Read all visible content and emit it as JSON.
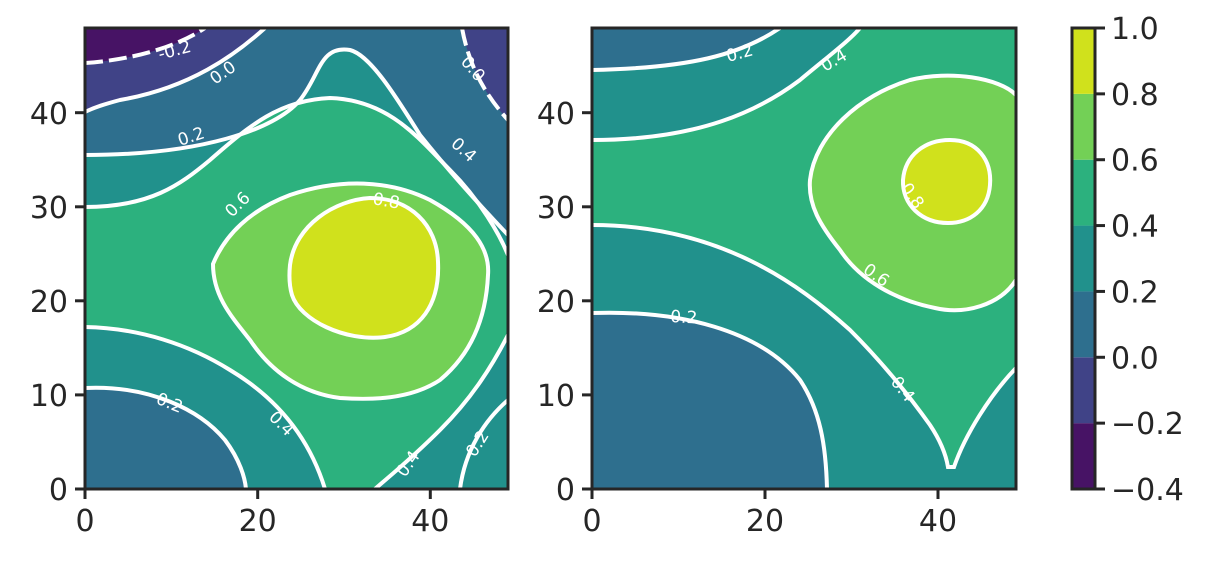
{
  "chart_data": [
    {
      "type": "contour",
      "title": "",
      "xlabel": "",
      "ylabel": "",
      "xlim": [
        0,
        49
      ],
      "ylim": [
        0,
        49
      ],
      "xticks": [
        "0",
        "20",
        "40"
      ],
      "yticks": [
        "0",
        "10",
        "20",
        "30",
        "40"
      ],
      "grid": false,
      "colormap": "viridis",
      "extrema": [
        {
          "kind": "max",
          "x": 32.5,
          "y": 23.5,
          "level_band": "0.8–1.0"
        },
        {
          "kind": "min",
          "x": 0,
          "y": 49,
          "level_band": "-0.4–-0.2"
        },
        {
          "kind": "min",
          "x": 49,
          "y": 49,
          "level_band": "-0.2–0.0"
        }
      ],
      "contour_labels": [
        "-0.2",
        "0.0",
        "0.0",
        "0.2",
        "0.4",
        "0.6",
        "0.8",
        "0.2",
        "0.4",
        "0.4",
        "0.2"
      ]
    },
    {
      "type": "contour",
      "title": "",
      "xlabel": "",
      "ylabel": "",
      "xlim": [
        0,
        49
      ],
      "ylim": [
        0,
        49
      ],
      "xticks": [
        "0",
        "20",
        "40"
      ],
      "yticks": [
        "0",
        "10",
        "20",
        "30",
        "40"
      ],
      "grid": false,
      "colormap": "viridis",
      "extrema": [
        {
          "kind": "max",
          "x": 41.5,
          "y": 32.5,
          "level_band": "0.8–1.0"
        },
        {
          "kind": "min",
          "x": 0,
          "y": 0,
          "level_band": "0.0–0.2"
        }
      ],
      "contour_labels": [
        "0.2",
        "0.4",
        "0.8",
        "0.6",
        "0.2",
        "0.4"
      ]
    },
    {
      "type": "colorbar",
      "levels": [
        -0.4,
        -0.2,
        0.0,
        0.2,
        0.4,
        0.6,
        0.8,
        1.0
      ],
      "tick_labels": [
        "1.0",
        "0.8",
        "0.6",
        "0.4",
        "0.2",
        "0.0",
        "−0.2",
        "−0.4"
      ],
      "band_colors": [
        "#471365",
        "#404387",
        "#2e6f8e",
        "#21918c",
        "#2cb17e",
        "#73d056",
        "#d0e11c"
      ]
    }
  ],
  "colors": {
    "axes_edge": "#262626",
    "contour_line": "#ffffff",
    "text": "#262626"
  }
}
